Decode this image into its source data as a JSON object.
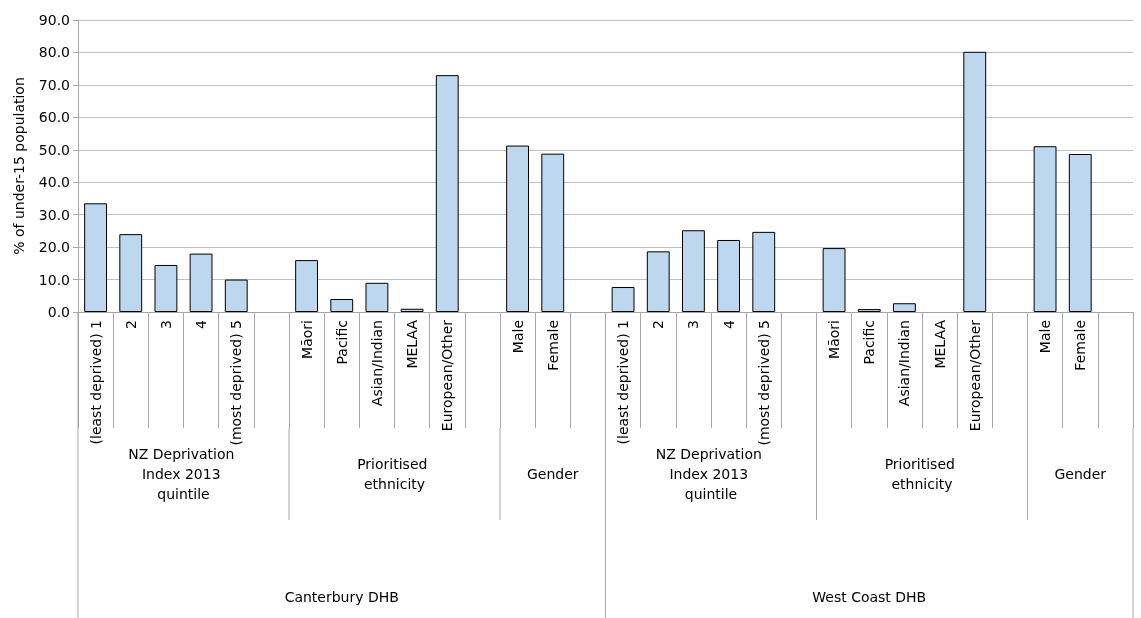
{
  "chart_data": {
    "type": "bar",
    "ylabel": "% of under-15 population",
    "categories": [
      "(least deprived) 1",
      "2",
      "3",
      "4",
      "(most deprived) 5",
      null,
      "Māori",
      "Pacific",
      "Asian/Indian",
      "MELAA",
      "European/Other",
      null,
      "Male",
      "Female",
      null,
      "(least deprived) 1",
      "2",
      "3",
      "4",
      "(most deprived) 5",
      null,
      "Māori",
      "Pacific",
      "Asian/Indian",
      "MELAA",
      "European/Other",
      null,
      "Male",
      "Female",
      null
    ],
    "values": [
      33.5,
      24.0,
      14.5,
      18.0,
      10.0,
      null,
      16.0,
      4.0,
      9.0,
      1.0,
      73.0,
      null,
      51.3,
      48.8,
      null,
      7.7,
      18.7,
      25.2,
      22.2,
      24.7,
      null,
      19.7,
      0.9,
      2.7,
      null,
      80.2,
      null,
      51.1,
      48.7,
      null
    ],
    "color": "#bdd7ee",
    "ylim": [
      0,
      90
    ],
    "yticks": [
      {
        "value": 0,
        "label": "0.0"
      },
      {
        "value": 10,
        "label": "10.0"
      },
      {
        "value": 20,
        "label": "20.0"
      },
      {
        "value": 30,
        "label": "30.0"
      },
      {
        "value": 40,
        "label": "40.0"
      },
      {
        "value": 50,
        "label": "50.0"
      },
      {
        "value": 60,
        "label": "60.0"
      },
      {
        "value": 70,
        "label": "70.0"
      },
      {
        "value": 80,
        "label": "80.0"
      },
      {
        "value": 90,
        "label": "90.0"
      }
    ],
    "grid": "y",
    "annotations": [
      "NZ Deprivation Index 2013 quintile",
      "Prioritised ethnicity",
      "Gender",
      "NZ Deprivation Index 2013 quintile",
      "Prioritised ethnicity",
      "Gender",
      "Canterbury DHB",
      "West Coast DHB"
    ]
  }
}
